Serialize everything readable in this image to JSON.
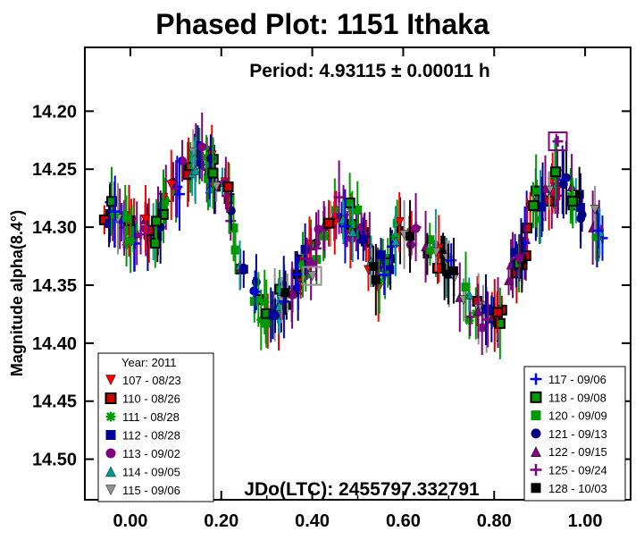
{
  "chart_data": {
    "type": "scatter",
    "title": "Phased Plot: 1151 Ithaka",
    "subtitle": "Period: 4.93115 ± 0.00011 h",
    "annotation": "JDo(LTC): 2455797.332791",
    "xlabel": "",
    "ylabel": "Magnitude alpha(8.4°)",
    "xlim": [
      -0.1,
      1.1
    ],
    "ylim": [
      14.535,
      14.145
    ],
    "y_inverted": true,
    "x_ticks": [
      "0.00",
      "0.20",
      "0.40",
      "0.60",
      "0.80",
      "1.00"
    ],
    "y_ticks": [
      "14.20",
      "14.25",
      "14.30",
      "14.35",
      "14.40",
      "14.45",
      "14.50"
    ],
    "legend_left_title": "Year: 2011",
    "series": [
      {
        "name": "107 - 08/23",
        "marker": "triangle-down",
        "color": "#ff0000",
        "legend": "left"
      },
      {
        "name": "110 - 08/26",
        "marker": "square-outline",
        "color": "#000000",
        "fill": "#cc0000",
        "legend": "left"
      },
      {
        "name": "111 - 08/28",
        "marker": "asterisk",
        "color": "#009900",
        "legend": "left"
      },
      {
        "name": "112 - 08/28",
        "marker": "square",
        "color": "#000099",
        "legend": "left"
      },
      {
        "name": "113 - 09/02",
        "marker": "circle",
        "color": "#800080",
        "legend": "left"
      },
      {
        "name": "114 - 09/05",
        "marker": "triangle-up",
        "color": "#009999",
        "legend": "left"
      },
      {
        "name": "115 - 09/06",
        "marker": "triangle-down",
        "color": "#909090",
        "legend": "left"
      },
      {
        "name": "117 - 09/06",
        "marker": "plus",
        "color": "#0000ff",
        "legend": "right"
      },
      {
        "name": "118 - 09/08",
        "marker": "square-outline",
        "color": "#000000",
        "fill": "#009900",
        "legend": "right"
      },
      {
        "name": "120 - 09/09",
        "marker": "square",
        "color": "#009900",
        "legend": "right"
      },
      {
        "name": "121 - 09/13",
        "marker": "circle",
        "color": "#000080",
        "legend": "right"
      },
      {
        "name": "122 - 09/15",
        "marker": "triangle-up",
        "color": "#800080",
        "legend": "right"
      },
      {
        "name": "125 - 09/24",
        "marker": "plus",
        "color": "#800080",
        "legend": "right"
      },
      {
        "name": "128 - 10/03",
        "marker": "square",
        "color": "#000000",
        "legend": "right"
      }
    ],
    "lightcurve_model": {
      "phase": [
        -0.05,
        0.0,
        0.05,
        0.1,
        0.15,
        0.2,
        0.25,
        0.3,
        0.35,
        0.4,
        0.45,
        0.5,
        0.55,
        0.6,
        0.65,
        0.7,
        0.75,
        0.8,
        0.85,
        0.9,
        0.95,
        1.0,
        1.05
      ],
      "magnitude": [
        14.285,
        14.3,
        14.3,
        14.26,
        14.24,
        14.26,
        14.34,
        14.375,
        14.36,
        14.32,
        14.29,
        14.3,
        14.34,
        14.3,
        14.31,
        14.335,
        14.37,
        14.38,
        14.33,
        14.28,
        14.26,
        14.29,
        14.31
      ]
    },
    "highlighted_points": [
      {
        "series": "125 - 09/24",
        "x": 0.94,
        "y": 14.226
      },
      {
        "series": "115 - 09/06",
        "x": 0.4,
        "y": 14.342
      }
    ],
    "grid": false
  }
}
